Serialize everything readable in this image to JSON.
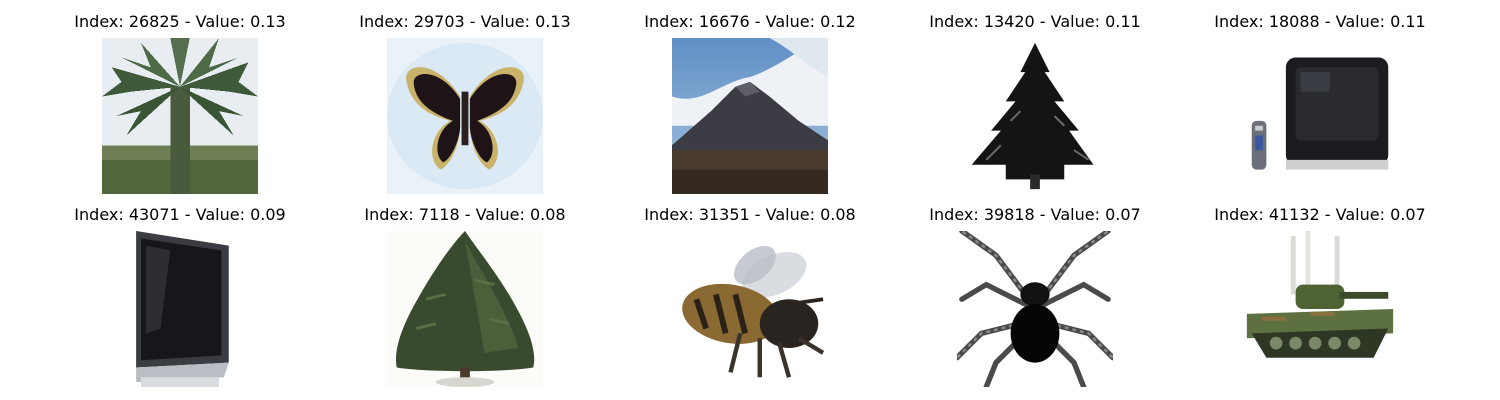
{
  "panels": [
    {
      "title": "Index: 26825 - Value: 0.13",
      "icon": "palm-tree-image"
    },
    {
      "title": "Index: 29703 - Value: 0.13",
      "icon": "butterfly-image"
    },
    {
      "title": "Index: 16676 - Value: 0.12",
      "icon": "mountain-image"
    },
    {
      "title": "Index: 13420 - Value: 0.11",
      "icon": "pine-tree-image"
    },
    {
      "title": "Index: 18088 - Value: 0.11",
      "icon": "crt-television-image"
    },
    {
      "title": "Index: 43071 - Value: 0.09",
      "icon": "flatscreen-tv-image"
    },
    {
      "title": "Index: 7118 - Value: 0.08",
      "icon": "conifer-tree-image"
    },
    {
      "title": "Index: 31351 - Value: 0.08",
      "icon": "bee-image"
    },
    {
      "title": "Index: 39818 - Value: 0.07",
      "icon": "spider-image"
    },
    {
      "title": "Index: 41132 - Value: 0.07",
      "icon": "tank-image"
    }
  ]
}
